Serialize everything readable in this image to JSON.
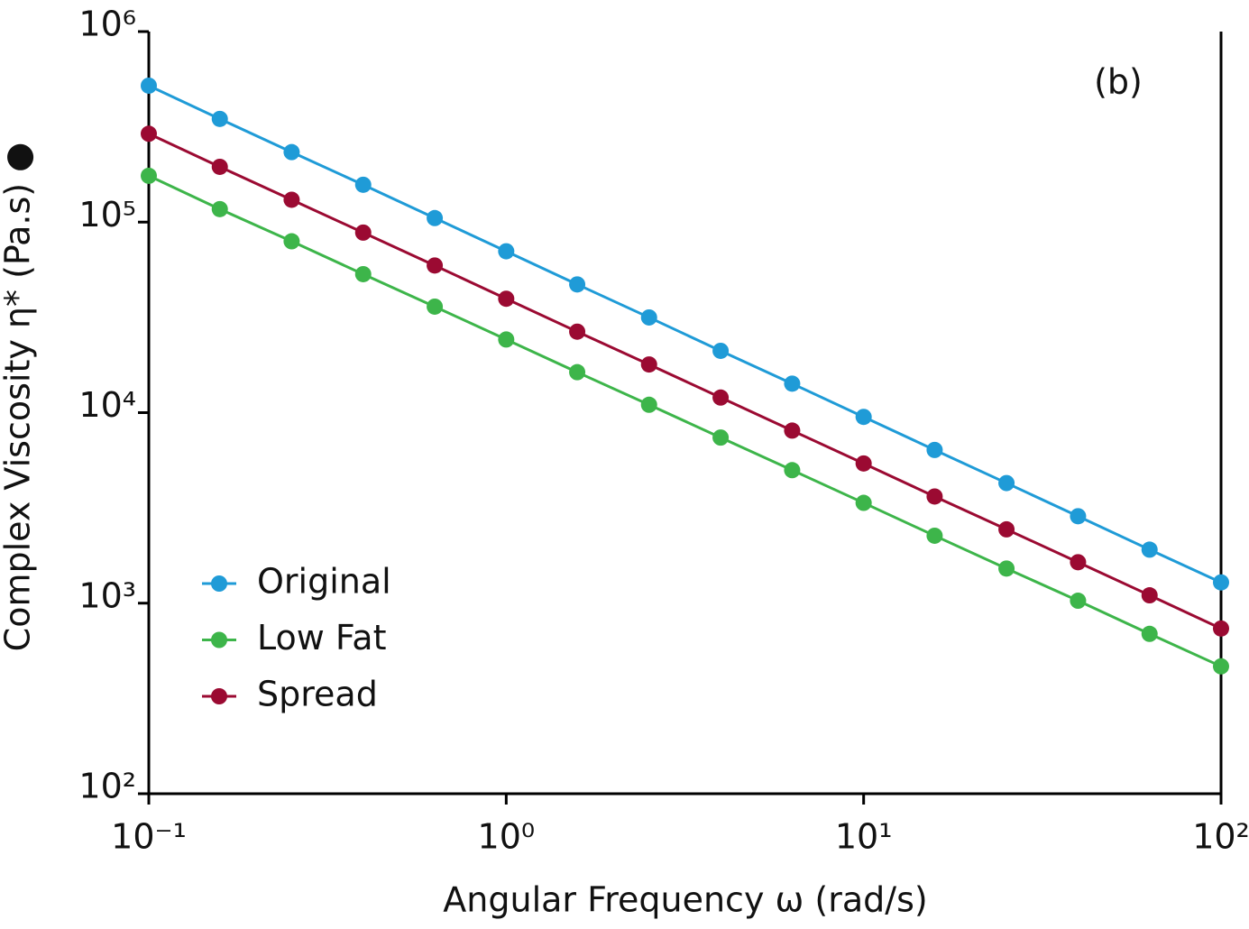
{
  "chart_data": {
    "type": "line",
    "y_label": "Complex Viscosity η*  (Pa.s) ●",
    "x_label": "Angular Frequency ω (rad/s)",
    "annotation": "(b)",
    "x": [
      0.1,
      0.158,
      0.251,
      0.398,
      0.631,
      1,
      1.58,
      2.51,
      3.98,
      6.31,
      10,
      15.8,
      25.1,
      39.8,
      63.1,
      100
    ],
    "series": [
      {
        "name": "Original",
        "color": "#1f9bd7",
        "values": [
          520000,
          348000,
          233000,
          157000,
          105000,
          70300,
          47100,
          31600,
          21100,
          14200,
          9500,
          6370,
          4270,
          2860,
          1910,
          1285
        ]
      },
      {
        "name": "Low Fat",
        "color": "#3db54a",
        "values": [
          175000,
          117000,
          79300,
          53300,
          36000,
          24200,
          16300,
          11000,
          7400,
          4990,
          3360,
          2260,
          1520,
          1030,
          690,
          466
        ]
      },
      {
        "name": "Spread",
        "color": "#9b0a32",
        "values": [
          291000,
          195000,
          131000,
          88100,
          59200,
          39600,
          26600,
          17900,
          12000,
          8050,
          5410,
          3630,
          2440,
          1640,
          1100,
          736
        ]
      }
    ],
    "xlim": [
      0.1,
      100
    ],
    "ylim": [
      100,
      1000000
    ],
    "xscale": "log",
    "yscale": "log",
    "xticks": [
      {
        "value": 0.1,
        "label": "10⁻¹"
      },
      {
        "value": 1,
        "label": "10⁰"
      },
      {
        "value": 10,
        "label": "10¹"
      },
      {
        "value": 100,
        "label": "10²"
      }
    ],
    "yticks": [
      {
        "value": 100,
        "label": "10²"
      },
      {
        "value": 1000,
        "label": "10³"
      },
      {
        "value": 10000,
        "label": "10⁴"
      },
      {
        "value": 100000,
        "label": "10⁵"
      },
      {
        "value": 1000000,
        "label": "10⁶"
      }
    ],
    "legend": "lower left"
  }
}
